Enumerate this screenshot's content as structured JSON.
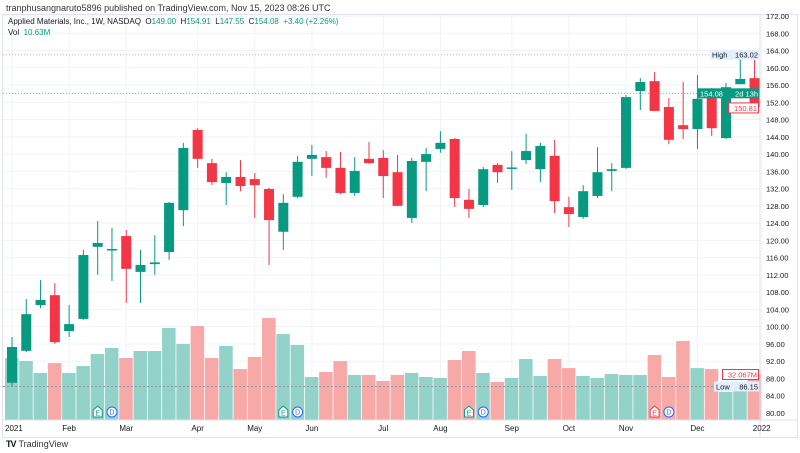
{
  "publish_line": "tranphusangnaruto5896 published on TradingView.com, Nov 15, 2023 08:26 UTC",
  "legend": {
    "symbol": "Applied Materials, Inc., 1W, NASDAQ",
    "o_label": "O",
    "o": "149.00",
    "h_label": "H",
    "h": "154.91",
    "l_label": "L",
    "l": "147.55",
    "c_label": "C",
    "c": "154.08",
    "change": "+3.40 (+2.26%)",
    "vol_label": "Vol",
    "vol": "10.63M"
  },
  "footer": {
    "brand": "TradingView",
    "logo_icon": "tradingview-logo-icon"
  },
  "colors": {
    "up": "#089981",
    "down": "#f23645",
    "vol_up": "#92d2c9",
    "vol_down": "#f7a9a7",
    "grid": "#f0f3fa"
  },
  "chart_data": {
    "type": "candlestick",
    "title": "Applied Materials, Inc., 1W, NASDAQ",
    "ylim": [
      80,
      172
    ],
    "grid": true,
    "y_ticks": [
      "172.00",
      "168.00",
      "164.00",
      "160.00",
      "156.00",
      "152.00",
      "148.00",
      "144.00",
      "140.00",
      "136.00",
      "132.00",
      "128.00",
      "124.00",
      "120.00",
      "116.00",
      "112.00",
      "108.00",
      "104.00",
      "100.00",
      "96.00",
      "92.00",
      "88.00",
      "84.00",
      "80.00"
    ],
    "x_labels": [
      {
        "label": "2021",
        "bar": 0
      },
      {
        "label": "Feb",
        "bar": 4
      },
      {
        "label": "Mar",
        "bar": 8
      },
      {
        "label": "Apr",
        "bar": 13
      },
      {
        "label": "May",
        "bar": 17
      },
      {
        "label": "Jun",
        "bar": 21
      },
      {
        "label": "Jul",
        "bar": 26
      },
      {
        "label": "Aug",
        "bar": 30
      },
      {
        "label": "Sep",
        "bar": 35
      },
      {
        "label": "Oct",
        "bar": 39
      },
      {
        "label": "Nov",
        "bar": 43
      },
      {
        "label": "Dec",
        "bar": 48
      },
      {
        "label": "2022",
        "bar": 52.5
      }
    ],
    "candles_ohlc": [
      [
        87.0,
        97.6,
        86.15,
        95.3
      ],
      [
        94.4,
        106.4,
        94.1,
        102.9
      ],
      [
        105.0,
        110.8,
        104.3,
        106.2
      ],
      [
        107.3,
        110.1,
        96.0,
        96.4
      ],
      [
        99.0,
        105.0,
        97.6,
        100.6
      ],
      [
        101.8,
        117.8,
        101.6,
        116.6
      ],
      [
        118.5,
        124.5,
        112.0,
        119.4
      ],
      [
        117.9,
        122.9,
        110.6,
        118.0
      ],
      [
        121.0,
        122.4,
        105.5,
        113.4
      ],
      [
        112.7,
        117.8,
        105.5,
        114.3
      ],
      [
        114.5,
        121.2,
        112.0,
        114.9
      ],
      [
        117.3,
        128.9,
        115.5,
        128.7
      ],
      [
        127.0,
        142.6,
        123.3,
        141.4
      ],
      [
        145.6,
        146.0,
        136.8,
        138.9
      ],
      [
        137.9,
        138.9,
        132.8,
        133.5
      ],
      [
        133.3,
        135.8,
        128.2,
        134.7
      ],
      [
        134.7,
        138.6,
        131.4,
        132.6
      ],
      [
        134.2,
        135.6,
        125.2,
        132.8
      ],
      [
        131.9,
        132.2,
        114.3,
        124.7
      ],
      [
        122.0,
        130.7,
        117.8,
        128.7
      ],
      [
        130.1,
        139.6,
        129.8,
        138.2
      ],
      [
        138.9,
        142.1,
        134.9,
        139.8
      ],
      [
        139.3,
        140.7,
        134.5,
        136.8
      ],
      [
        136.8,
        140.5,
        130.7,
        131.0
      ],
      [
        131.0,
        139.3,
        130.3,
        136.1
      ],
      [
        138.9,
        142.8,
        137.7,
        137.9
      ],
      [
        139.1,
        140.9,
        129.8,
        134.9
      ],
      [
        135.8,
        139.8,
        128.0,
        128.0
      ],
      [
        125.2,
        139.1,
        124.0,
        138.4
      ],
      [
        138.2,
        141.4,
        131.4,
        140.0
      ],
      [
        141.2,
        145.3,
        140.3,
        142.6
      ],
      [
        143.5,
        143.7,
        127.7,
        129.8
      ],
      [
        129.4,
        131.9,
        125.2,
        127.3
      ],
      [
        128.2,
        137.0,
        127.7,
        136.5
      ],
      [
        137.5,
        137.9,
        133.3,
        135.8
      ],
      [
        136.7,
        140.7,
        131.7,
        136.9
      ],
      [
        138.6,
        144.7,
        137.7,
        140.7
      ],
      [
        136.5,
        142.6,
        133.5,
        141.9
      ],
      [
        139.6,
        143.3,
        126.3,
        129.1
      ],
      [
        127.7,
        130.1,
        123.1,
        126.1
      ],
      [
        125.4,
        132.8,
        125.0,
        131.4
      ],
      [
        130.3,
        141.6,
        129.8,
        135.8
      ],
      [
        136.1,
        137.9,
        131.4,
        136.5
      ],
      [
        136.8,
        153.7,
        136.5,
        153.2
      ],
      [
        154.6,
        157.6,
        150.2,
        156.7
      ],
      [
        156.9,
        159.0,
        150.0,
        150.0
      ],
      [
        150.9,
        153.0,
        142.3,
        143.3
      ],
      [
        146.7,
        156.7,
        143.5,
        145.8
      ],
      [
        145.8,
        158.3,
        141.2,
        152.8
      ],
      [
        154.2,
        155.3,
        144.2,
        146.0
      ],
      [
        143.7,
        156.5,
        143.5,
        155.5
      ],
      [
        156.2,
        163.02,
        156.2,
        157.4
      ],
      [
        157.6,
        161.8,
        150.81,
        150.81
      ]
    ],
    "volumes_millions": [
      43.2,
      41.1,
      32.8,
      39.7,
      32.8,
      37.6,
      46.0,
      50.2,
      43.2,
      48.1,
      48.1,
      64.1,
      53.0,
      65.5,
      43.2,
      51.6,
      35.5,
      43.9,
      71.1,
      59.9,
      52.3,
      30.0,
      33.5,
      41.1,
      31.4,
      31.4,
      27.2,
      31.4,
      32.8,
      30.0,
      29.3,
      41.8,
      48.1,
      32.8,
      26.5,
      29.3,
      42.5,
      30.7,
      42.5,
      36.2,
      30.7,
      29.3,
      32.1,
      31.4,
      31.4,
      45.3,
      30.0,
      55.1,
      36.2,
      35.5,
      19.5,
      24.4,
      32.067
    ],
    "events": [
      {
        "type": "E",
        "bar": 6,
        "tone": "up"
      },
      {
        "type": "D",
        "bar": 7
      },
      {
        "type": "E",
        "bar": 19,
        "tone": "up"
      },
      {
        "type": "D",
        "bar": 20
      },
      {
        "type": "E",
        "bar": 32,
        "tone": "up"
      },
      {
        "type": "D",
        "bar": 33
      },
      {
        "type": "E",
        "bar": 45,
        "tone": "down"
      },
      {
        "type": "D",
        "bar": 46
      }
    ],
    "price_labels": {
      "high_label": "High",
      "high": "163.02",
      "last": "154.08",
      "countdown": "2d 13h",
      "bar_close": "150.81",
      "low_label": "Low",
      "low": "86.15",
      "volume": "32.067M"
    }
  }
}
